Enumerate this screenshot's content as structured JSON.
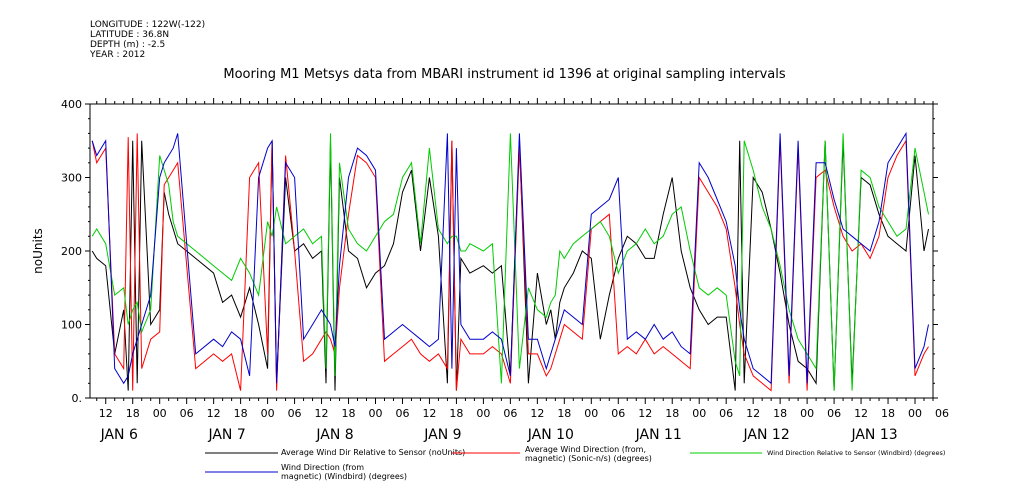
{
  "meta": {
    "longitude": "LONGITUDE : 122W(-122)",
    "latitude": "LATITUDE : 36.8N",
    "depth": "DEPTH (m) : -2.5",
    "year": "YEAR : 2012"
  },
  "chart_data": {
    "type": "line",
    "title": "Mooring M1 Metsys data from MBARI instrument id 1396 at original sampling intervals",
    "ylabel": "noUnits",
    "xlabel": "",
    "ylim": [
      0,
      400
    ],
    "xlim_hours": [
      -3.5,
      184
    ],
    "y_ticks": [
      "0.",
      "100",
      "200",
      "300",
      "400"
    ],
    "y_tick_values": [
      0,
      100,
      200,
      300,
      400
    ],
    "x_hour_ticks": [
      "12",
      "18",
      "00",
      "06",
      "12",
      "18",
      "00",
      "06",
      "12",
      "18",
      "00",
      "06",
      "12",
      "18",
      "00",
      "06",
      "12",
      "18",
      "00",
      "06",
      "12",
      "18",
      "00",
      "06",
      "12",
      "18",
      "00",
      "06",
      "12",
      "18",
      "00",
      "06"
    ],
    "x_day_labels": [
      "JAN  6",
      "JAN  7",
      "JAN  8",
      "JAN  9",
      "JAN 10",
      "JAN 11",
      "JAN 12",
      "JAN 13"
    ],
    "grid": false,
    "legend_position": "bottom",
    "series": [
      {
        "name": "Average Wind Dir Relative to Sensor (noUnits)",
        "color": "#000000",
        "x": [
          -3,
          -2,
          0,
          2,
          4,
          5,
          6,
          7,
          8,
          10,
          12,
          13,
          14,
          15,
          16,
          20,
          24,
          26,
          28,
          30,
          32,
          34,
          36,
          37,
          38,
          40,
          42,
          44,
          46,
          48,
          49,
          50,
          51,
          52,
          54,
          56,
          58,
          60,
          62,
          64,
          66,
          68,
          70,
          72,
          74,
          76,
          77,
          78,
          79,
          80,
          81,
          84,
          86,
          88,
          90,
          92,
          94,
          96,
          98,
          99,
          100,
          101,
          102,
          104,
          106,
          108,
          110,
          112,
          114,
          116,
          118,
          120,
          122,
          124,
          126,
          128,
          130,
          132,
          134,
          136,
          138,
          140,
          141,
          142,
          144,
          146,
          148,
          150,
          152,
          154,
          156,
          158,
          160,
          162,
          164,
          166,
          168,
          170,
          172,
          174,
          176,
          178,
          180,
          182,
          183
        ],
        "y": [
          200,
          190,
          180,
          60,
          120,
          10,
          350,
          20,
          350,
          100,
          120,
          280,
          250,
          230,
          210,
          190,
          170,
          130,
          140,
          110,
          150,
          100,
          40,
          350,
          20,
          300,
          200,
          210,
          190,
          200,
          20,
          350,
          10,
          300,
          200,
          190,
          150,
          170,
          180,
          210,
          280,
          310,
          200,
          300,
          220,
          20,
          350,
          10,
          190,
          180,
          170,
          180,
          170,
          180,
          30,
          350,
          20,
          170,
          100,
          120,
          80,
          130,
          150,
          170,
          200,
          190,
          80,
          140,
          190,
          220,
          210,
          190,
          190,
          250,
          300,
          200,
          150,
          120,
          100,
          110,
          110,
          10,
          350,
          20,
          300,
          280,
          230,
          170,
          100,
          50,
          40,
          20,
          350,
          10,
          350,
          20,
          300,
          290,
          250,
          220,
          210,
          200,
          330,
          200,
          230
        ]
      },
      {
        "name": "Average Wind Direction (from, magnetic) (Sonic-n/s) (degrees)",
        "color": "#ff0000",
        "x": [
          -3,
          -2,
          0,
          2,
          4,
          5,
          6,
          7,
          8,
          10,
          12,
          13,
          14,
          15,
          16,
          20,
          24,
          26,
          28,
          30,
          32,
          34,
          36,
          37,
          38,
          40,
          42,
          44,
          46,
          48,
          49,
          50,
          51,
          52,
          54,
          56,
          58,
          60,
          62,
          64,
          66,
          68,
          70,
          72,
          74,
          76,
          77,
          78,
          79,
          80,
          81,
          84,
          86,
          88,
          90,
          92,
          94,
          96,
          98,
          99,
          100,
          101,
          102,
          104,
          106,
          108,
          110,
          112,
          114,
          116,
          118,
          120,
          122,
          124,
          126,
          128,
          130,
          132,
          134,
          136,
          138,
          140,
          141,
          142,
          144,
          146,
          148,
          150,
          152,
          154,
          156,
          158,
          160,
          162,
          164,
          166,
          168,
          170,
          172,
          174,
          176,
          178,
          180,
          182,
          183
        ],
        "y": [
          350,
          320,
          340,
          60,
          40,
          355,
          10,
          360,
          40,
          80,
          90,
          290,
          300,
          310,
          320,
          40,
          60,
          50,
          60,
          10,
          300,
          320,
          60,
          350,
          10,
          330,
          200,
          50,
          60,
          80,
          90,
          80,
          60,
          150,
          250,
          330,
          320,
          300,
          50,
          60,
          70,
          80,
          60,
          50,
          60,
          40,
          350,
          10,
          80,
          70,
          60,
          60,
          70,
          60,
          20,
          340,
          60,
          60,
          30,
          40,
          60,
          80,
          100,
          90,
          80,
          230,
          240,
          250,
          60,
          70,
          60,
          80,
          60,
          70,
          60,
          50,
          40,
          300,
          280,
          260,
          230,
          150,
          100,
          60,
          30,
          20,
          10,
          350,
          20,
          340,
          10,
          300,
          310,
          260,
          220,
          200,
          210,
          190,
          220,
          300,
          330,
          350,
          30,
          60,
          70
        ]
      },
      {
        "name": "Wind Direction Relative to Sensor (Windbird) (degrees)",
        "color": "#00cc00",
        "x": [
          -3,
          -2,
          0,
          2,
          4,
          5,
          6,
          7,
          8,
          10,
          12,
          13,
          14,
          15,
          16,
          20,
          24,
          26,
          28,
          30,
          32,
          34,
          36,
          37,
          38,
          40,
          42,
          44,
          46,
          48,
          49,
          50,
          51,
          52,
          54,
          56,
          58,
          60,
          62,
          64,
          66,
          68,
          70,
          72,
          74,
          76,
          77,
          78,
          79,
          80,
          81,
          84,
          86,
          88,
          90,
          92,
          94,
          96,
          98,
          99,
          100,
          101,
          102,
          104,
          106,
          108,
          110,
          112,
          114,
          116,
          118,
          120,
          122,
          124,
          126,
          128,
          130,
          132,
          134,
          136,
          138,
          140,
          141,
          142,
          144,
          146,
          148,
          150,
          152,
          154,
          156,
          158,
          160,
          162,
          164,
          166,
          168,
          170,
          172,
          174,
          176,
          178,
          180,
          182,
          183
        ],
        "y": [
          220,
          230,
          210,
          140,
          150,
          100,
          120,
          130,
          90,
          120,
          330,
          310,
          290,
          240,
          220,
          200,
          180,
          170,
          160,
          190,
          170,
          140,
          240,
          220,
          260,
          210,
          220,
          230,
          210,
          220,
          40,
          360,
          30,
          320,
          230,
          210,
          200,
          220,
          240,
          250,
          300,
          320,
          210,
          340,
          230,
          210,
          220,
          220,
          200,
          200,
          210,
          200,
          210,
          20,
          360,
          40,
          150,
          120,
          110,
          130,
          140,
          200,
          190,
          210,
          220,
          230,
          240,
          220,
          170,
          200,
          210,
          230,
          210,
          220,
          250,
          260,
          200,
          150,
          140,
          150,
          140,
          50,
          30,
          350,
          310,
          260,
          230,
          180,
          120,
          80,
          60,
          40,
          350,
          10,
          360,
          10,
          310,
          300,
          260,
          240,
          220,
          230,
          340,
          280,
          250
        ]
      },
      {
        "name": "Wind Direction (from, magnetic) (Windbird) (degrees)",
        "color": "#0000cc",
        "x": [
          -3,
          -2,
          0,
          2,
          4,
          5,
          6,
          7,
          8,
          10,
          12,
          13,
          14,
          15,
          16,
          20,
          24,
          26,
          28,
          30,
          32,
          34,
          36,
          37,
          38,
          40,
          42,
          44,
          46,
          48,
          49,
          50,
          51,
          52,
          54,
          56,
          58,
          60,
          62,
          64,
          66,
          68,
          70,
          72,
          74,
          76,
          77,
          78,
          79,
          80,
          81,
          84,
          86,
          88,
          90,
          92,
          94,
          96,
          98,
          99,
          100,
          101,
          102,
          104,
          106,
          108,
          110,
          112,
          114,
          116,
          118,
          120,
          122,
          124,
          126,
          128,
          130,
          132,
          134,
          136,
          138,
          140,
          141,
          142,
          144,
          146,
          148,
          150,
          152,
          154,
          156,
          158,
          160,
          162,
          164,
          166,
          168,
          170,
          172,
          174,
          176,
          178,
          180,
          182,
          183
        ],
        "y": [
          350,
          330,
          350,
          40,
          20,
          30,
          60,
          80,
          100,
          140,
          300,
          320,
          330,
          340,
          360,
          60,
          80,
          70,
          90,
          80,
          30,
          300,
          340,
          350,
          20,
          320,
          300,
          80,
          100,
          120,
          110,
          100,
          70,
          180,
          300,
          340,
          330,
          310,
          80,
          90,
          100,
          90,
          80,
          70,
          80,
          360,
          40,
          340,
          100,
          90,
          80,
          80,
          90,
          80,
          30,
          360,
          80,
          80,
          40,
          60,
          80,
          100,
          120,
          110,
          100,
          250,
          260,
          270,
          300,
          80,
          90,
          80,
          100,
          80,
          90,
          70,
          60,
          320,
          300,
          270,
          240,
          180,
          120,
          80,
          40,
          30,
          20,
          360,
          30,
          350,
          20,
          320,
          320,
          270,
          230,
          220,
          210,
          200,
          240,
          320,
          340,
          360,
          40,
          70,
          100
        ]
      }
    ]
  },
  "legend": {
    "items": [
      {
        "label": "Average Wind Dir Relative to Sensor (noUnits)"
      },
      {
        "label": "Average Wind Direction (from,\nmagnetic) (Sonic-n/s) (degrees)"
      },
      {
        "label": "Wind Direction Relative to Sensor (Windbird) (degrees)"
      },
      {
        "label": "Wind Direction (from\nmagnetic) (Windbird) (degrees)"
      }
    ]
  }
}
